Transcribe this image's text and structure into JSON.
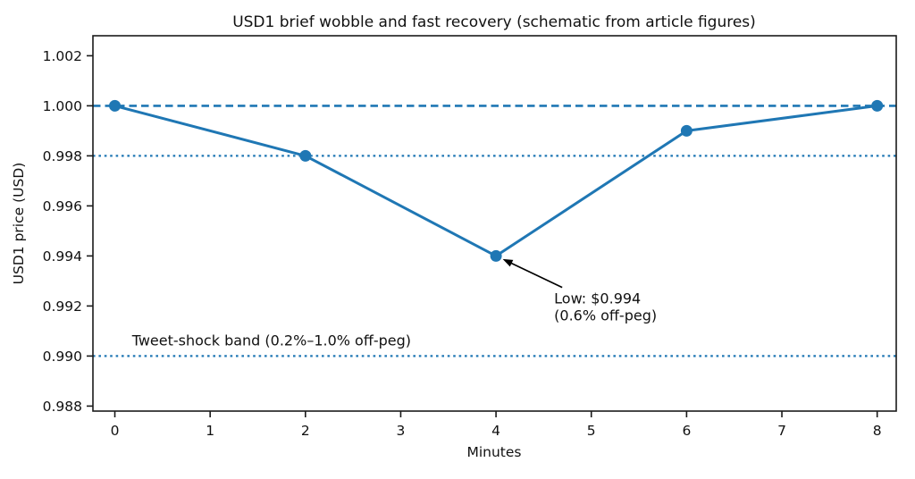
{
  "chart_data": {
    "type": "line",
    "title": "USD1 brief wobble and fast recovery (schematic from article figures)",
    "xlabel": "Minutes",
    "ylabel": "USD1 price (USD)",
    "x": [
      0,
      2,
      4,
      6,
      8
    ],
    "y": [
      1.0,
      0.998,
      0.994,
      0.999,
      1.0
    ],
    "series_name": "USD1 price",
    "series_color": "#1f77b4",
    "marker": "circle",
    "grid": false,
    "legend": "none",
    "xlim": [
      -0.23,
      8.2
    ],
    "ylim": [
      0.9878,
      1.0028
    ],
    "xticks": [
      0,
      1,
      2,
      3,
      4,
      5,
      6,
      7,
      8
    ],
    "xtick_labels": [
      "0",
      "1",
      "2",
      "3",
      "4",
      "5",
      "6",
      "7",
      "8"
    ],
    "yticks": [
      0.988,
      0.99,
      0.992,
      0.994,
      0.996,
      0.998,
      1.0,
      1.002
    ],
    "ytick_labels": [
      "0.988",
      "0.990",
      "0.992",
      "0.994",
      "0.996",
      "0.998",
      "1.000",
      "1.002"
    ],
    "reference_lines": [
      {
        "y": 1.0,
        "style": "dashed",
        "color": "#1f77b4",
        "name": "peg-line"
      },
      {
        "y": 0.998,
        "style": "dotted",
        "color": "#1f77b4",
        "name": "band-upper-line"
      },
      {
        "y": 0.99,
        "style": "dotted",
        "color": "#1f77b4",
        "name": "band-lower-line"
      }
    ],
    "band_label": {
      "text": "Tweet-shock band (0.2%–1.0% off-peg)",
      "xy": [
        0.18,
        0.9906
      ]
    },
    "annotation": {
      "lines": [
        "Low: $0.994",
        "(0.6% off-peg)"
      ],
      "text_xy": [
        4.61,
        0.9921
      ],
      "point_xy": [
        4,
        0.994
      ],
      "arrow_color": "#000000"
    },
    "axis_color": "#1a1a1a"
  }
}
